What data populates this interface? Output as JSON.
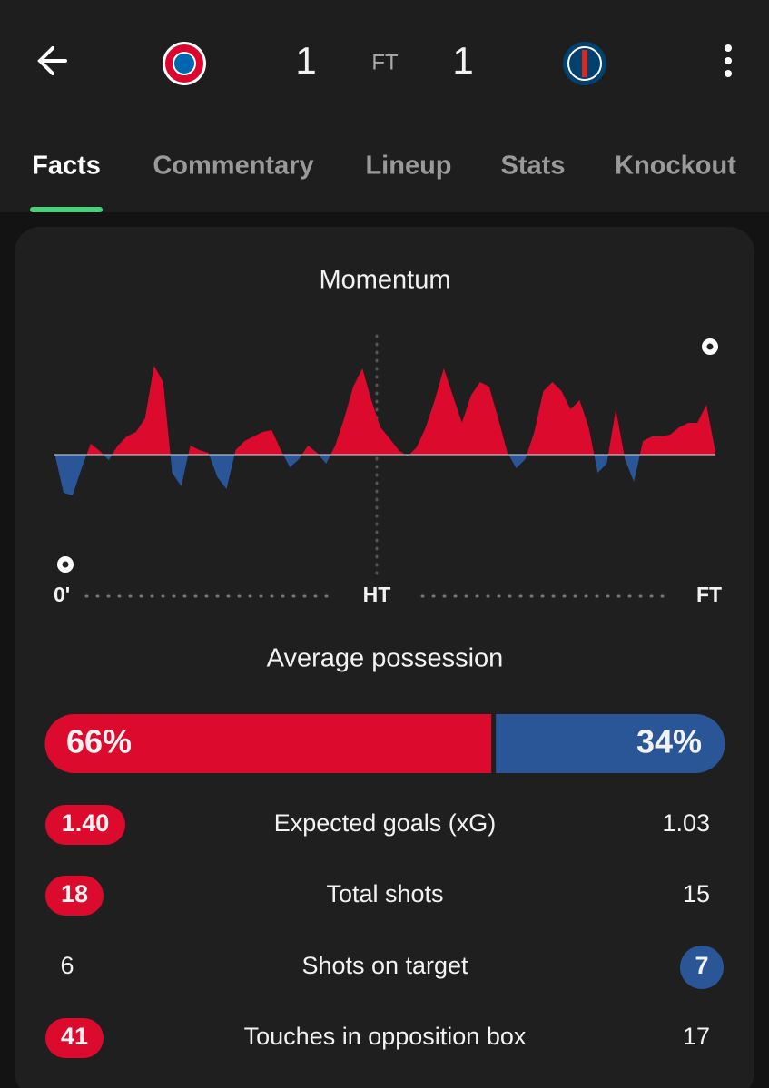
{
  "header": {
    "home_score": "1",
    "status": "FT",
    "away_score": "1"
  },
  "tabs": {
    "items": [
      "Facts",
      "Commentary",
      "Lineup",
      "Stats",
      "Knockout"
    ],
    "active": 0
  },
  "momentum": {
    "title": "Momentum",
    "ylim": [
      -100,
      100
    ],
    "values": [
      2,
      -42,
      -45,
      -15,
      12,
      4,
      -6,
      10,
      20,
      25,
      40,
      98,
      80,
      -20,
      -35,
      10,
      5,
      2,
      -25,
      -38,
      5,
      15,
      20,
      25,
      27,
      5,
      -14,
      -5,
      10,
      2,
      -10,
      10,
      40,
      75,
      95,
      60,
      30,
      18,
      5,
      -2,
      8,
      30,
      60,
      95,
      65,
      35,
      65,
      80,
      75,
      40,
      3,
      -15,
      -5,
      25,
      70,
      80,
      70,
      50,
      60,
      30,
      -20,
      -10,
      50,
      -5,
      -30,
      15,
      20,
      20,
      22,
      30,
      35,
      35,
      55,
      3
    ],
    "axis_labels": [
      "0'",
      "HT",
      "FT"
    ],
    "home_color": "#dc0a2d",
    "away_color": "#2a5597"
  },
  "possession": {
    "title": "Average possession",
    "values": [
      66,
      34
    ],
    "value_labels": [
      "66%",
      "34%"
    ],
    "colors": [
      "#dc0a2d",
      "#2a5597"
    ]
  },
  "stats": [
    {
      "label": "Expected goals (xG)",
      "home": "1.40",
      "away": "1.03",
      "highlight": "home"
    },
    {
      "label": "Total shots",
      "home": "18",
      "away": "15",
      "highlight": "home"
    },
    {
      "label": "Shots on target",
      "home": "6",
      "away": "7",
      "highlight": "away"
    },
    {
      "label": "Touches in opposition box",
      "home": "41",
      "away": "17",
      "highlight": "home"
    }
  ]
}
